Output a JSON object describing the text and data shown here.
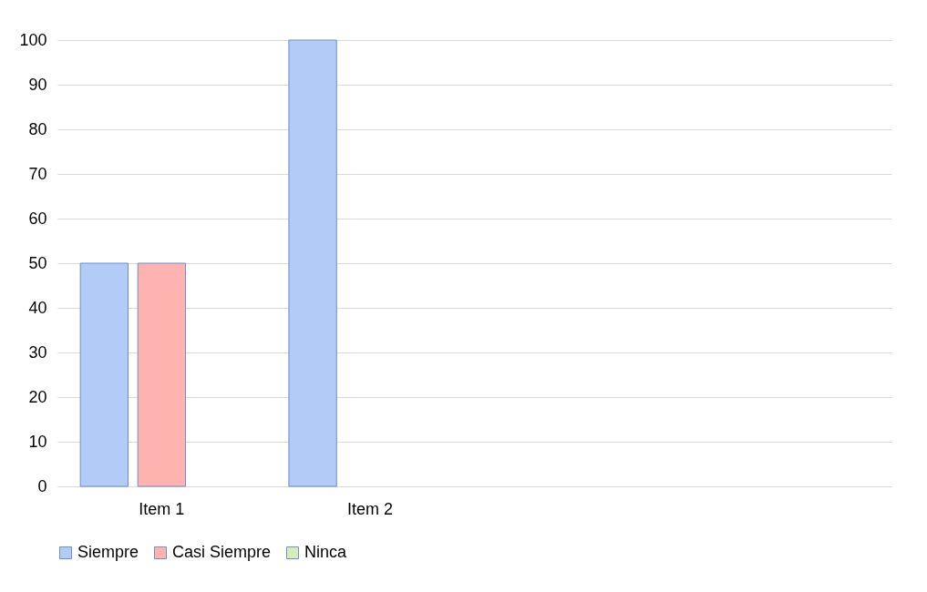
{
  "chart_data": {
    "type": "bar",
    "categories": [
      "Item 1",
      "Item 2",
      null,
      null
    ],
    "series": [
      {
        "name": "Siempre",
        "color": "#b3cbf7",
        "values": [
          50,
          100,
          null,
          null
        ]
      },
      {
        "name": "Casi Siempre",
        "color": "#ffb3b0",
        "values": [
          50,
          null,
          null,
          null
        ]
      },
      {
        "name": "Ninca",
        "color": "#d7ebb4",
        "values": [
          null,
          null,
          null,
          null
        ]
      }
    ],
    "ylim": [
      0,
      100
    ],
    "yticks": [
      0,
      10,
      20,
      30,
      40,
      50,
      60,
      70,
      80,
      90,
      100
    ],
    "grid": "y",
    "legend": "bottom"
  }
}
